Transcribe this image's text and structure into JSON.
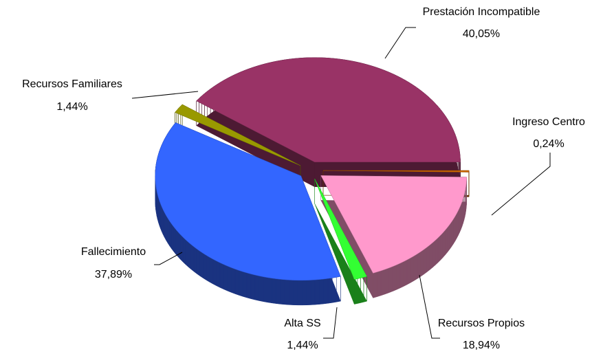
{
  "chart_data": {
    "type": "pie3d",
    "categories": [
      "Prestación Incompatible",
      "Ingreso Centro",
      "Recursos Propios",
      "Alta SS",
      "Fallecimiento",
      "Recursos Familiares"
    ],
    "values": [
      40.05,
      0.24,
      18.94,
      1.44,
      37.89,
      1.44
    ],
    "value_labels": [
      "40,05%",
      "0,24%",
      "18,94%",
      "1,44%",
      "37,89%",
      "1,44%"
    ],
    "colors": [
      "#993366",
      "#cc6600",
      "#ff99cc",
      "#33ff33",
      "#3366ff",
      "#999900"
    ]
  }
}
